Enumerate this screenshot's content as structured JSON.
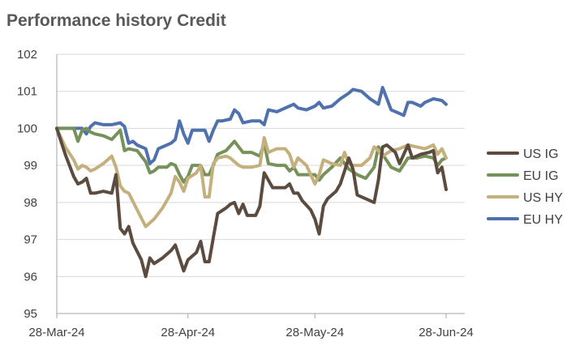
{
  "chart_data": {
    "type": "line",
    "title": "Performance history Credit",
    "ylim": [
      95,
      102
    ],
    "yticks": [
      95,
      96,
      97,
      98,
      99,
      100,
      101,
      102
    ],
    "x_start": "2024-03-28",
    "x_end": "2024-06-28",
    "xticks": [
      {
        "date": "2024-03-28",
        "label": "28-Mar-24"
      },
      {
        "date": "2024-04-28",
        "label": "28-Apr-24"
      },
      {
        "date": "2024-05-28",
        "label": "28-May-24"
      },
      {
        "date": "2024-06-28",
        "label": "28-Jun-24"
      }
    ],
    "grid": "horizontal",
    "legend_position": "right",
    "series": [
      {
        "name": "EU HY",
        "color": "#4F71AD",
        "points": [
          [
            "2024-03-28",
            100.0
          ],
          [
            "2024-03-30",
            100.0
          ],
          [
            "2024-04-01",
            100.0
          ],
          [
            "2024-04-03",
            100.0
          ],
          [
            "2024-04-04",
            99.85
          ],
          [
            "2024-04-05",
            100.05
          ],
          [
            "2024-04-06",
            100.15
          ],
          [
            "2024-04-08",
            100.1
          ],
          [
            "2024-04-10",
            100.1
          ],
          [
            "2024-04-12",
            100.15
          ],
          [
            "2024-04-13",
            100.05
          ],
          [
            "2024-04-14",
            99.6
          ],
          [
            "2024-04-15",
            99.65
          ],
          [
            "2024-04-16",
            99.55
          ],
          [
            "2024-04-18",
            99.45
          ],
          [
            "2024-04-19",
            99.05
          ],
          [
            "2024-04-20",
            99.15
          ],
          [
            "2024-04-21",
            99.45
          ],
          [
            "2024-04-22",
            99.5
          ],
          [
            "2024-04-24",
            99.6
          ],
          [
            "2024-04-25",
            99.7
          ],
          [
            "2024-04-26",
            100.2
          ],
          [
            "2024-04-27",
            99.85
          ],
          [
            "2024-04-28",
            99.6
          ],
          [
            "2024-04-29",
            99.95
          ],
          [
            "2024-05-01",
            99.95
          ],
          [
            "2024-05-02",
            99.95
          ],
          [
            "2024-05-03",
            99.65
          ],
          [
            "2024-05-04",
            99.95
          ],
          [
            "2024-05-05",
            100.2
          ],
          [
            "2024-05-06",
            100.2
          ],
          [
            "2024-05-08",
            100.25
          ],
          [
            "2024-05-09",
            100.5
          ],
          [
            "2024-05-10",
            100.4
          ],
          [
            "2024-05-11",
            100.15
          ],
          [
            "2024-05-13",
            100.2
          ],
          [
            "2024-05-15",
            100.2
          ],
          [
            "2024-05-16",
            100.1
          ],
          [
            "2024-05-17",
            100.5
          ],
          [
            "2024-05-19",
            100.45
          ],
          [
            "2024-05-21",
            100.55
          ],
          [
            "2024-05-23",
            100.65
          ],
          [
            "2024-05-24",
            100.55
          ],
          [
            "2024-05-26",
            100.5
          ],
          [
            "2024-05-28",
            100.6
          ],
          [
            "2024-05-29",
            100.7
          ],
          [
            "2024-05-30",
            100.55
          ],
          [
            "2024-06-01",
            100.6
          ],
          [
            "2024-06-03",
            100.8
          ],
          [
            "2024-06-05",
            100.95
          ],
          [
            "2024-06-06",
            101.05
          ],
          [
            "2024-06-08",
            101.0
          ],
          [
            "2024-06-10",
            100.8
          ],
          [
            "2024-06-12",
            100.65
          ],
          [
            "2024-06-13",
            101.1
          ],
          [
            "2024-06-14",
            100.8
          ],
          [
            "2024-06-15",
            100.5
          ],
          [
            "2024-06-17",
            100.4
          ],
          [
            "2024-06-18",
            100.35
          ],
          [
            "2024-06-19",
            100.7
          ],
          [
            "2024-06-20",
            100.7
          ],
          [
            "2024-06-22",
            100.6
          ],
          [
            "2024-06-23",
            100.7
          ],
          [
            "2024-06-25",
            100.8
          ],
          [
            "2024-06-27",
            100.75
          ],
          [
            "2024-06-28",
            100.65
          ]
        ]
      },
      {
        "name": "EU IG",
        "color": "#76925A",
        "points": [
          [
            "2024-03-28",
            100.0
          ],
          [
            "2024-03-30",
            100.0
          ],
          [
            "2024-04-01",
            100.0
          ],
          [
            "2024-04-02",
            99.65
          ],
          [
            "2024-04-03",
            99.95
          ],
          [
            "2024-04-04",
            100.0
          ],
          [
            "2024-04-05",
            99.9
          ],
          [
            "2024-04-06",
            99.85
          ],
          [
            "2024-04-08",
            99.8
          ],
          [
            "2024-04-10",
            99.7
          ],
          [
            "2024-04-12",
            99.95
          ],
          [
            "2024-04-13",
            99.4
          ],
          [
            "2024-04-14",
            99.45
          ],
          [
            "2024-04-16",
            99.4
          ],
          [
            "2024-04-18",
            99.1
          ],
          [
            "2024-04-19",
            98.8
          ],
          [
            "2024-04-20",
            98.85
          ],
          [
            "2024-04-21",
            98.95
          ],
          [
            "2024-04-23",
            98.95
          ],
          [
            "2024-04-24",
            99.05
          ],
          [
            "2024-04-25",
            99.0
          ],
          [
            "2024-04-26",
            98.75
          ],
          [
            "2024-04-27",
            98.55
          ],
          [
            "2024-04-28",
            98.7
          ],
          [
            "2024-04-29",
            99.0
          ],
          [
            "2024-05-01",
            99.0
          ],
          [
            "2024-05-02",
            98.75
          ],
          [
            "2024-05-03",
            98.75
          ],
          [
            "2024-05-04",
            99.0
          ],
          [
            "2024-05-05",
            99.3
          ],
          [
            "2024-05-07",
            99.4
          ],
          [
            "2024-05-09",
            99.65
          ],
          [
            "2024-05-10",
            99.5
          ],
          [
            "2024-05-11",
            99.35
          ],
          [
            "2024-05-13",
            99.35
          ],
          [
            "2024-05-15",
            99.25
          ],
          [
            "2024-05-16",
            99.6
          ],
          [
            "2024-05-17",
            99.05
          ],
          [
            "2024-05-19",
            99.0
          ],
          [
            "2024-05-21",
            99.0
          ],
          [
            "2024-05-22",
            98.85
          ],
          [
            "2024-05-23",
            98.95
          ],
          [
            "2024-05-24",
            98.75
          ],
          [
            "2024-05-26",
            98.75
          ],
          [
            "2024-05-28",
            98.75
          ],
          [
            "2024-05-29",
            98.6
          ],
          [
            "2024-05-30",
            98.75
          ],
          [
            "2024-06-01",
            98.95
          ],
          [
            "2024-06-03",
            99.2
          ],
          [
            "2024-06-05",
            98.9
          ],
          [
            "2024-06-07",
            98.75
          ],
          [
            "2024-06-09",
            98.65
          ],
          [
            "2024-06-11",
            98.95
          ],
          [
            "2024-06-12",
            99.5
          ],
          [
            "2024-06-13",
            99.3
          ],
          [
            "2024-06-15",
            98.95
          ],
          [
            "2024-06-17",
            98.85
          ],
          [
            "2024-06-19",
            99.2
          ],
          [
            "2024-06-21",
            99.2
          ],
          [
            "2024-06-23",
            99.25
          ],
          [
            "2024-06-25",
            99.2
          ],
          [
            "2024-06-26",
            99.0
          ],
          [
            "2024-06-27",
            99.15
          ],
          [
            "2024-06-28",
            99.2
          ]
        ]
      },
      {
        "name": "US HY",
        "color": "#C4B07D",
        "points": [
          [
            "2024-03-28",
            100.0
          ],
          [
            "2024-03-30",
            99.5
          ],
          [
            "2024-04-01",
            99.15
          ],
          [
            "2024-04-02",
            98.9
          ],
          [
            "2024-04-03",
            99.0
          ],
          [
            "2024-04-04",
            98.95
          ],
          [
            "2024-04-05",
            98.85
          ],
          [
            "2024-04-06",
            98.9
          ],
          [
            "2024-04-08",
            99.05
          ],
          [
            "2024-04-10",
            99.25
          ],
          [
            "2024-04-11",
            98.95
          ],
          [
            "2024-04-12",
            98.45
          ],
          [
            "2024-04-13",
            98.3
          ],
          [
            "2024-04-14",
            98.25
          ],
          [
            "2024-04-16",
            97.8
          ],
          [
            "2024-04-18",
            97.35
          ],
          [
            "2024-04-19",
            97.45
          ],
          [
            "2024-04-20",
            97.55
          ],
          [
            "2024-04-22",
            97.85
          ],
          [
            "2024-04-24",
            98.25
          ],
          [
            "2024-04-25",
            98.7
          ],
          [
            "2024-04-26",
            98.55
          ],
          [
            "2024-04-27",
            98.3
          ],
          [
            "2024-04-28",
            98.65
          ],
          [
            "2024-04-30",
            98.8
          ],
          [
            "2024-05-01",
            99.0
          ],
          [
            "2024-05-02",
            98.15
          ],
          [
            "2024-05-03",
            98.15
          ],
          [
            "2024-05-04",
            99.05
          ],
          [
            "2024-05-05",
            99.2
          ],
          [
            "2024-05-07",
            99.25
          ],
          [
            "2024-05-08",
            99.2
          ],
          [
            "2024-05-09",
            99.1
          ],
          [
            "2024-05-10",
            99.0
          ],
          [
            "2024-05-11",
            98.95
          ],
          [
            "2024-05-13",
            98.95
          ],
          [
            "2024-05-15",
            99.0
          ],
          [
            "2024-05-16",
            99.75
          ],
          [
            "2024-05-17",
            99.35
          ],
          [
            "2024-05-19",
            99.45
          ],
          [
            "2024-05-21",
            99.45
          ],
          [
            "2024-05-22",
            99.3
          ],
          [
            "2024-05-23",
            98.95
          ],
          [
            "2024-05-24",
            99.2
          ],
          [
            "2024-05-26",
            99.0
          ],
          [
            "2024-05-28",
            98.5
          ],
          [
            "2024-05-29",
            98.75
          ],
          [
            "2024-05-30",
            99.15
          ],
          [
            "2024-06-01",
            99.05
          ],
          [
            "2024-06-03",
            99.0
          ],
          [
            "2024-06-04",
            99.35
          ],
          [
            "2024-06-05",
            99.05
          ],
          [
            "2024-06-06",
            99.0
          ],
          [
            "2024-06-08",
            99.0
          ],
          [
            "2024-06-10",
            99.2
          ],
          [
            "2024-06-11",
            99.5
          ],
          [
            "2024-06-12",
            99.4
          ],
          [
            "2024-06-13",
            99.25
          ],
          [
            "2024-06-15",
            99.4
          ],
          [
            "2024-06-17",
            99.45
          ],
          [
            "2024-06-19",
            99.55
          ],
          [
            "2024-06-21",
            99.5
          ],
          [
            "2024-06-23",
            99.45
          ],
          [
            "2024-06-25",
            99.55
          ],
          [
            "2024-06-26",
            99.3
          ],
          [
            "2024-06-27",
            99.45
          ],
          [
            "2024-06-28",
            99.2
          ]
        ]
      },
      {
        "name": "US IG",
        "color": "#5C4B3F",
        "points": [
          [
            "2024-03-28",
            100.0
          ],
          [
            "2024-03-30",
            99.3
          ],
          [
            "2024-04-01",
            98.7
          ],
          [
            "2024-04-02",
            98.5
          ],
          [
            "2024-04-03",
            98.55
          ],
          [
            "2024-04-04",
            98.65
          ],
          [
            "2024-04-05",
            98.25
          ],
          [
            "2024-04-06",
            98.25
          ],
          [
            "2024-04-08",
            98.3
          ],
          [
            "2024-04-10",
            98.25
          ],
          [
            "2024-04-11",
            98.75
          ],
          [
            "2024-04-12",
            97.3
          ],
          [
            "2024-04-13",
            97.15
          ],
          [
            "2024-04-14",
            97.35
          ],
          [
            "2024-04-15",
            96.9
          ],
          [
            "2024-04-17",
            96.45
          ],
          [
            "2024-04-18",
            96.0
          ],
          [
            "2024-04-19",
            96.5
          ],
          [
            "2024-04-20",
            96.35
          ],
          [
            "2024-04-22",
            96.5
          ],
          [
            "2024-04-24",
            96.7
          ],
          [
            "2024-04-25",
            96.85
          ],
          [
            "2024-04-26",
            96.5
          ],
          [
            "2024-04-27",
            96.15
          ],
          [
            "2024-04-28",
            96.45
          ],
          [
            "2024-04-30",
            96.65
          ],
          [
            "2024-05-01",
            96.95
          ],
          [
            "2024-05-02",
            96.4
          ],
          [
            "2024-05-03",
            96.4
          ],
          [
            "2024-05-04",
            97.05
          ],
          [
            "2024-05-05",
            97.7
          ],
          [
            "2024-05-07",
            97.85
          ],
          [
            "2024-05-08",
            97.95
          ],
          [
            "2024-05-09",
            98.0
          ],
          [
            "2024-05-10",
            97.7
          ],
          [
            "2024-05-11",
            97.95
          ],
          [
            "2024-05-12",
            97.65
          ],
          [
            "2024-05-14",
            97.65
          ],
          [
            "2024-05-15",
            97.9
          ],
          [
            "2024-05-16",
            98.8
          ],
          [
            "2024-05-17",
            98.6
          ],
          [
            "2024-05-18",
            98.4
          ],
          [
            "2024-05-20",
            98.4
          ],
          [
            "2024-05-21",
            98.4
          ],
          [
            "2024-05-22",
            98.5
          ],
          [
            "2024-05-23",
            98.25
          ],
          [
            "2024-05-24",
            98.25
          ],
          [
            "2024-05-25",
            98.05
          ],
          [
            "2024-05-27",
            97.8
          ],
          [
            "2024-05-28",
            97.55
          ],
          [
            "2024-05-29",
            97.15
          ],
          [
            "2024-05-30",
            97.9
          ],
          [
            "2024-05-31",
            98.1
          ],
          [
            "2024-06-02",
            98.3
          ],
          [
            "2024-06-03",
            98.5
          ],
          [
            "2024-06-05",
            99.2
          ],
          [
            "2024-06-06",
            98.9
          ],
          [
            "2024-06-07",
            98.2
          ],
          [
            "2024-06-09",
            98.1
          ],
          [
            "2024-06-11",
            98.0
          ],
          [
            "2024-06-12",
            98.6
          ],
          [
            "2024-06-13",
            99.5
          ],
          [
            "2024-06-14",
            99.55
          ],
          [
            "2024-06-16",
            99.35
          ],
          [
            "2024-06-17",
            99.05
          ],
          [
            "2024-06-19",
            99.55
          ],
          [
            "2024-06-20",
            99.2
          ],
          [
            "2024-06-22",
            99.3
          ],
          [
            "2024-06-24",
            99.35
          ],
          [
            "2024-06-25",
            99.4
          ],
          [
            "2024-06-26",
            98.8
          ],
          [
            "2024-06-27",
            98.95
          ],
          [
            "2024-06-28",
            98.35
          ]
        ]
      }
    ],
    "legend_order": [
      "US IG",
      "EU IG",
      "US HY",
      "EU HY"
    ],
    "axis_color": "#A6A6A6",
    "grid_color": "#D9D9D9"
  }
}
